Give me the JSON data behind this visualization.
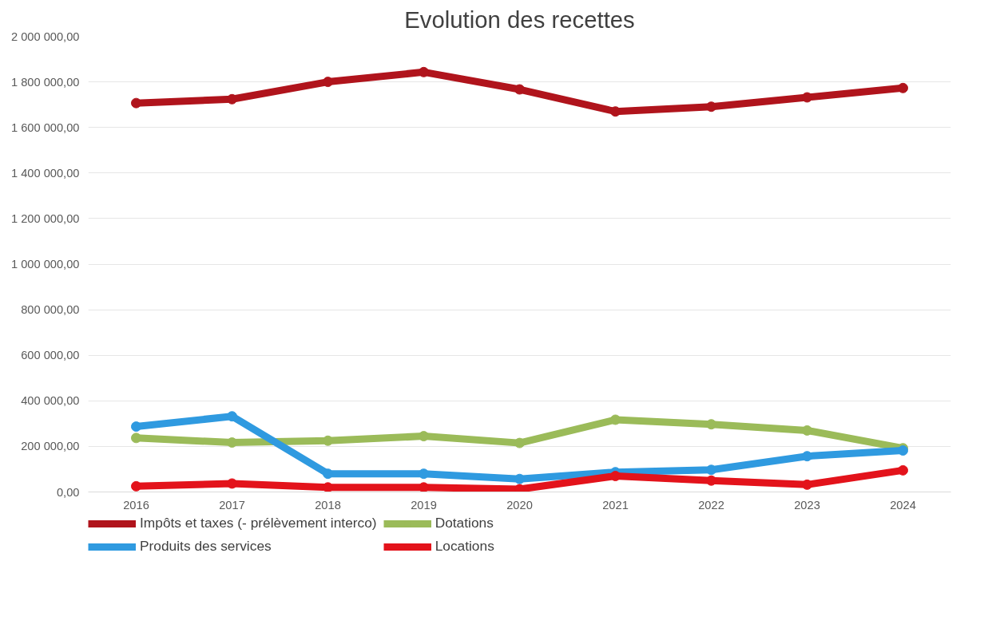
{
  "chart_data": {
    "type": "line",
    "title": "Evolution des recettes",
    "categories": [
      "2016",
      "2017",
      "2018",
      "2019",
      "2020",
      "2021",
      "2022",
      "2023",
      "2024"
    ],
    "series": [
      {
        "name": "Impôts et taxes (- prélèvement interco)",
        "color": "#b0141c",
        "values": [
          1707000,
          1724000,
          1800000,
          1843000,
          1767000,
          1670000,
          1691000,
          1732000,
          1773000
        ]
      },
      {
        "name": "Dotations",
        "color": "#9bbb59",
        "values": [
          237000,
          217000,
          225000,
          245000,
          215000,
          317000,
          297000,
          270000,
          192000
        ]
      },
      {
        "name": "Produits des services",
        "color": "#2f9ae0",
        "values": [
          287000,
          332000,
          80000,
          80000,
          57000,
          87000,
          97000,
          157000,
          182000
        ]
      },
      {
        "name": "Locations",
        "color": "#e3131b",
        "values": [
          25000,
          37000,
          20000,
          20000,
          12000,
          70000,
          50000,
          32000,
          95000
        ]
      }
    ],
    "ylim": [
      0,
      2000000
    ],
    "yticks": [
      {
        "value": 0,
        "label": "0,00"
      },
      {
        "value": 200000,
        "label": "200 000,00"
      },
      {
        "value": 400000,
        "label": "400 000,00"
      },
      {
        "value": 600000,
        "label": "600 000,00"
      },
      {
        "value": 800000,
        "label": "800 000,00"
      },
      {
        "value": 1000000,
        "label": "1 000 000,00"
      },
      {
        "value": 1200000,
        "label": "1 200 000,00"
      },
      {
        "value": 1400000,
        "label": "1 400 000,00"
      },
      {
        "value": 1600000,
        "label": "1 600 000,00"
      },
      {
        "value": 1800000,
        "label": "1 800 000,00"
      },
      {
        "value": 2000000,
        "label": "2 000 000,00"
      }
    ],
    "grid": "y",
    "legend": "bottom",
    "marker": "circle",
    "line_style": "solid"
  }
}
